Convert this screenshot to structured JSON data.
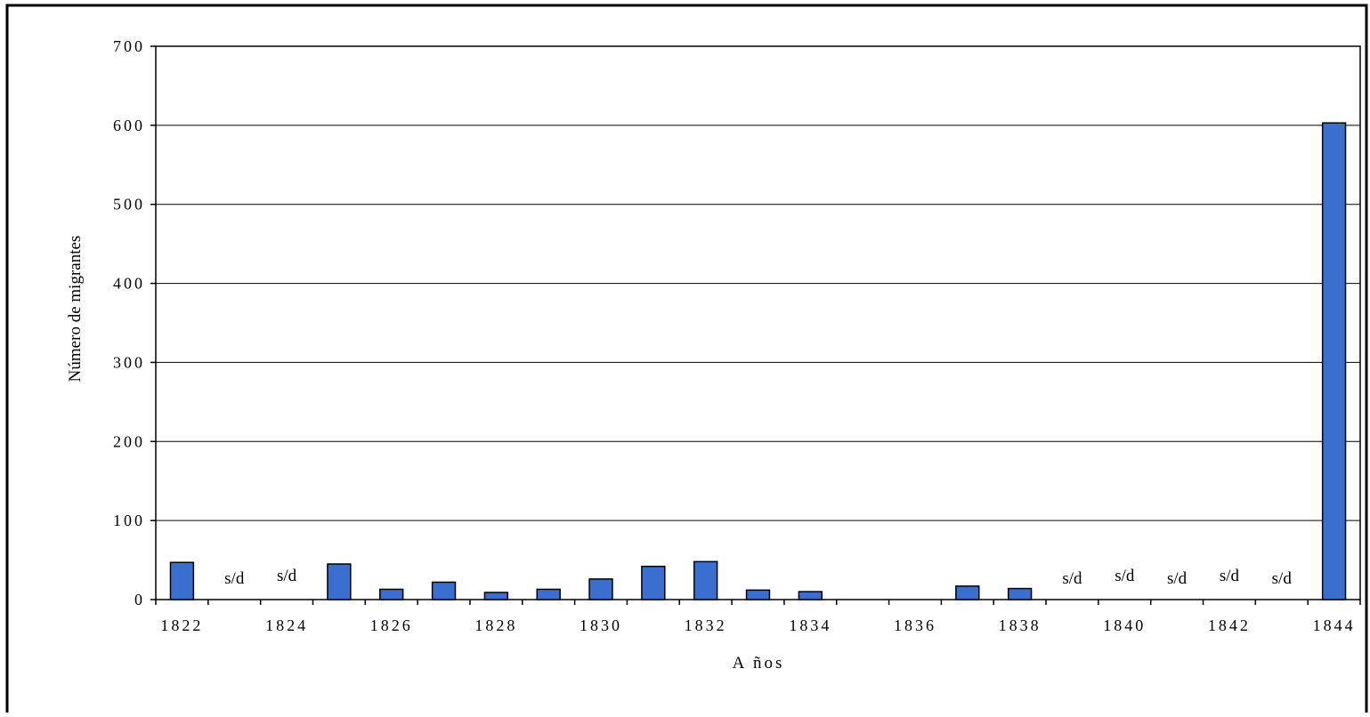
{
  "chart_data": {
    "type": "bar",
    "title": "",
    "xlabel": "A ños",
    "ylabel": "Número de migrantes",
    "ylim": [
      0,
      700
    ],
    "yticks": [
      0,
      100,
      200,
      300,
      400,
      500,
      600,
      700
    ],
    "ytick_labels": [
      "0",
      "100",
      "200",
      "300",
      "400",
      "500",
      "600",
      "700"
    ],
    "categories": [
      "1822",
      "1823",
      "1824",
      "1825",
      "1826",
      "1827",
      "1828",
      "1829",
      "1830",
      "1831",
      "1832",
      "1833",
      "1834",
      "1835",
      "1836",
      "1837",
      "1838",
      "1839",
      "1840",
      "1841",
      "1842",
      "1843",
      "1844"
    ],
    "x_tick_labels": [
      "1822",
      "1824",
      "1826",
      "1828",
      "1830",
      "1832",
      "1834",
      "1836",
      "1838",
      "1840",
      "1842",
      "1844"
    ],
    "values": [
      47,
      null,
      null,
      45,
      13,
      22,
      9,
      13,
      26,
      42,
      48,
      12,
      10,
      0,
      0,
      17,
      14,
      null,
      null,
      null,
      null,
      null,
      603
    ],
    "no_data_label": "s/d",
    "grid": true,
    "bar_color": "#3a6fcf",
    "bar_edge_color": "#000000"
  }
}
